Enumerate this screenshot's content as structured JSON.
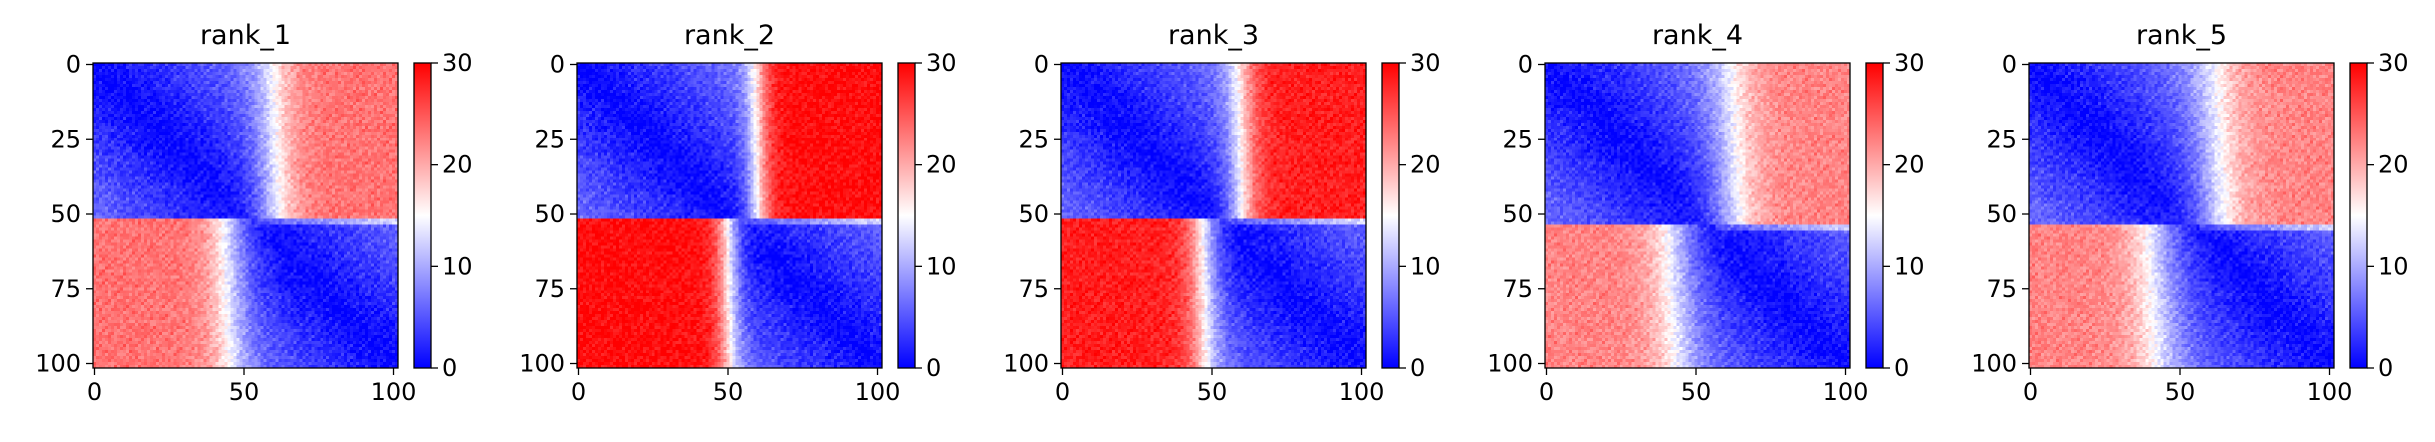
{
  "chart_data": {
    "type": "heatmap",
    "panels": [
      {
        "title": "rank_1",
        "block_boundary": 52,
        "reverse_boundary": 50,
        "off_block_level": 23,
        "transition_width": 12
      },
      {
        "title": "rank_2",
        "block_boundary": 52,
        "reverse_boundary": 55,
        "off_block_level": 29,
        "transition_width": 7
      },
      {
        "title": "rank_3",
        "block_boundary": 52,
        "reverse_boundary": 52,
        "off_block_level": 28,
        "transition_width": 9
      },
      {
        "title": "rank_4",
        "block_boundary": 54,
        "reverse_boundary": 48,
        "off_block_level": 22,
        "transition_width": 14
      },
      {
        "title": "rank_5",
        "block_boundary": 54,
        "reverse_boundary": 47,
        "off_block_level": 22,
        "transition_width": 15
      }
    ],
    "matrix_size": 102,
    "x_ticks": [
      0,
      50,
      100
    ],
    "y_ticks": [
      0,
      25,
      50,
      75,
      100
    ],
    "xlim": [
      0,
      102
    ],
    "ylim": [
      102,
      0
    ],
    "colorbar": {
      "ticks": [
        0,
        10,
        20,
        30
      ],
      "range": [
        0,
        30
      ],
      "colormap": "bwr",
      "low_color": "#0000ff",
      "mid_color": "#ffffff",
      "high_color": "#ff0000"
    },
    "grid": false,
    "legend": "none"
  }
}
